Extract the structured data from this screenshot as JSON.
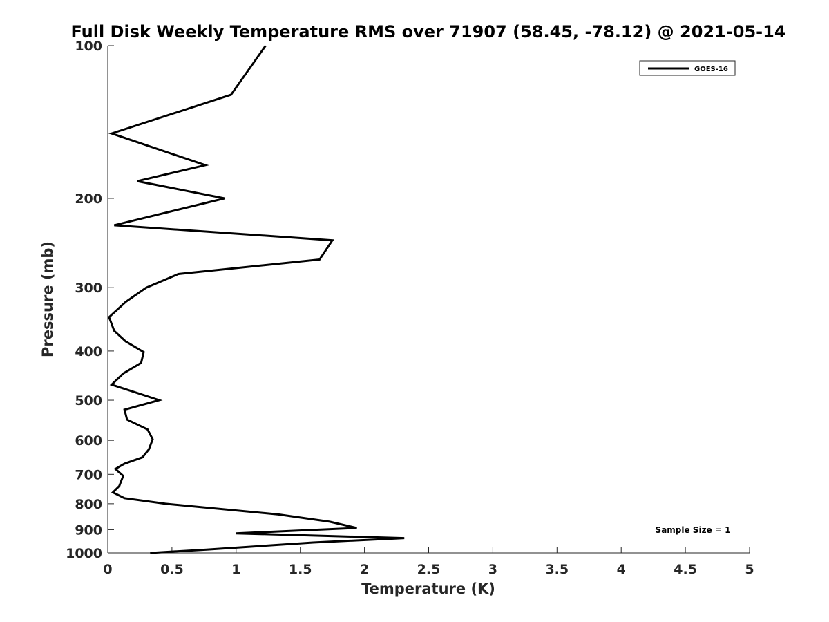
{
  "chart_data": {
    "type": "line",
    "title": "Full Disk Weekly Temperature RMS over 71907 (58.45, -78.12) @ 2021-05-14",
    "xlabel": "Temperature (K)",
    "ylabel": "Pressure (mb)",
    "xlim": [
      0,
      5
    ],
    "ylim": [
      1000,
      100
    ],
    "y_scale": "log",
    "x_ticks": [
      "0",
      "0.5",
      "1",
      "1.5",
      "2",
      "2.5",
      "3",
      "3.5",
      "4",
      "4.5",
      "5"
    ],
    "x_tick_values": [
      0,
      0.5,
      1,
      1.5,
      2,
      2.5,
      3,
      3.5,
      4,
      4.5,
      5
    ],
    "y_ticks": [
      "100",
      "200",
      "300",
      "400",
      "500",
      "600",
      "700",
      "800",
      "900",
      "1000"
    ],
    "y_tick_values": [
      100,
      200,
      300,
      400,
      500,
      600,
      700,
      800,
      900,
      1000
    ],
    "grid": false,
    "legend": "top-right",
    "series": [
      {
        "name": "GOES-16",
        "color": "#000000",
        "points": [
          [
            1.23,
            100
          ],
          [
            0.96,
            125
          ],
          [
            0.03,
            149
          ],
          [
            0.76,
            172
          ],
          [
            0.23,
            185
          ],
          [
            0.91,
            200
          ],
          [
            0.05,
            226
          ],
          [
            1.75,
            242
          ],
          [
            1.65,
            264
          ],
          [
            0.55,
            282
          ],
          [
            0.3,
            300
          ],
          [
            0.14,
            320
          ],
          [
            0.01,
            343
          ],
          [
            0.05,
            365
          ],
          [
            0.14,
            383
          ],
          [
            0.28,
            402
          ],
          [
            0.26,
            422
          ],
          [
            0.12,
            443
          ],
          [
            0.03,
            466
          ],
          [
            0.4,
            500
          ],
          [
            0.13,
            522
          ],
          [
            0.15,
            546
          ],
          [
            0.31,
            571
          ],
          [
            0.35,
            597
          ],
          [
            0.32,
            625
          ],
          [
            0.27,
            648
          ],
          [
            0.13,
            667
          ],
          [
            0.06,
            683
          ],
          [
            0.12,
            705
          ],
          [
            0.09,
            738
          ],
          [
            0.04,
            760
          ],
          [
            0.13,
            780
          ],
          [
            0.45,
            800
          ],
          [
            1.33,
            840
          ],
          [
            1.73,
            868
          ],
          [
            1.94,
            893
          ],
          [
            1.0,
            915
          ],
          [
            2.31,
            935
          ],
          [
            1.6,
            954
          ],
          [
            0.77,
            985
          ],
          [
            0.33,
            1000
          ]
        ]
      }
    ],
    "annotations": [
      "Sample Size = 1"
    ]
  }
}
